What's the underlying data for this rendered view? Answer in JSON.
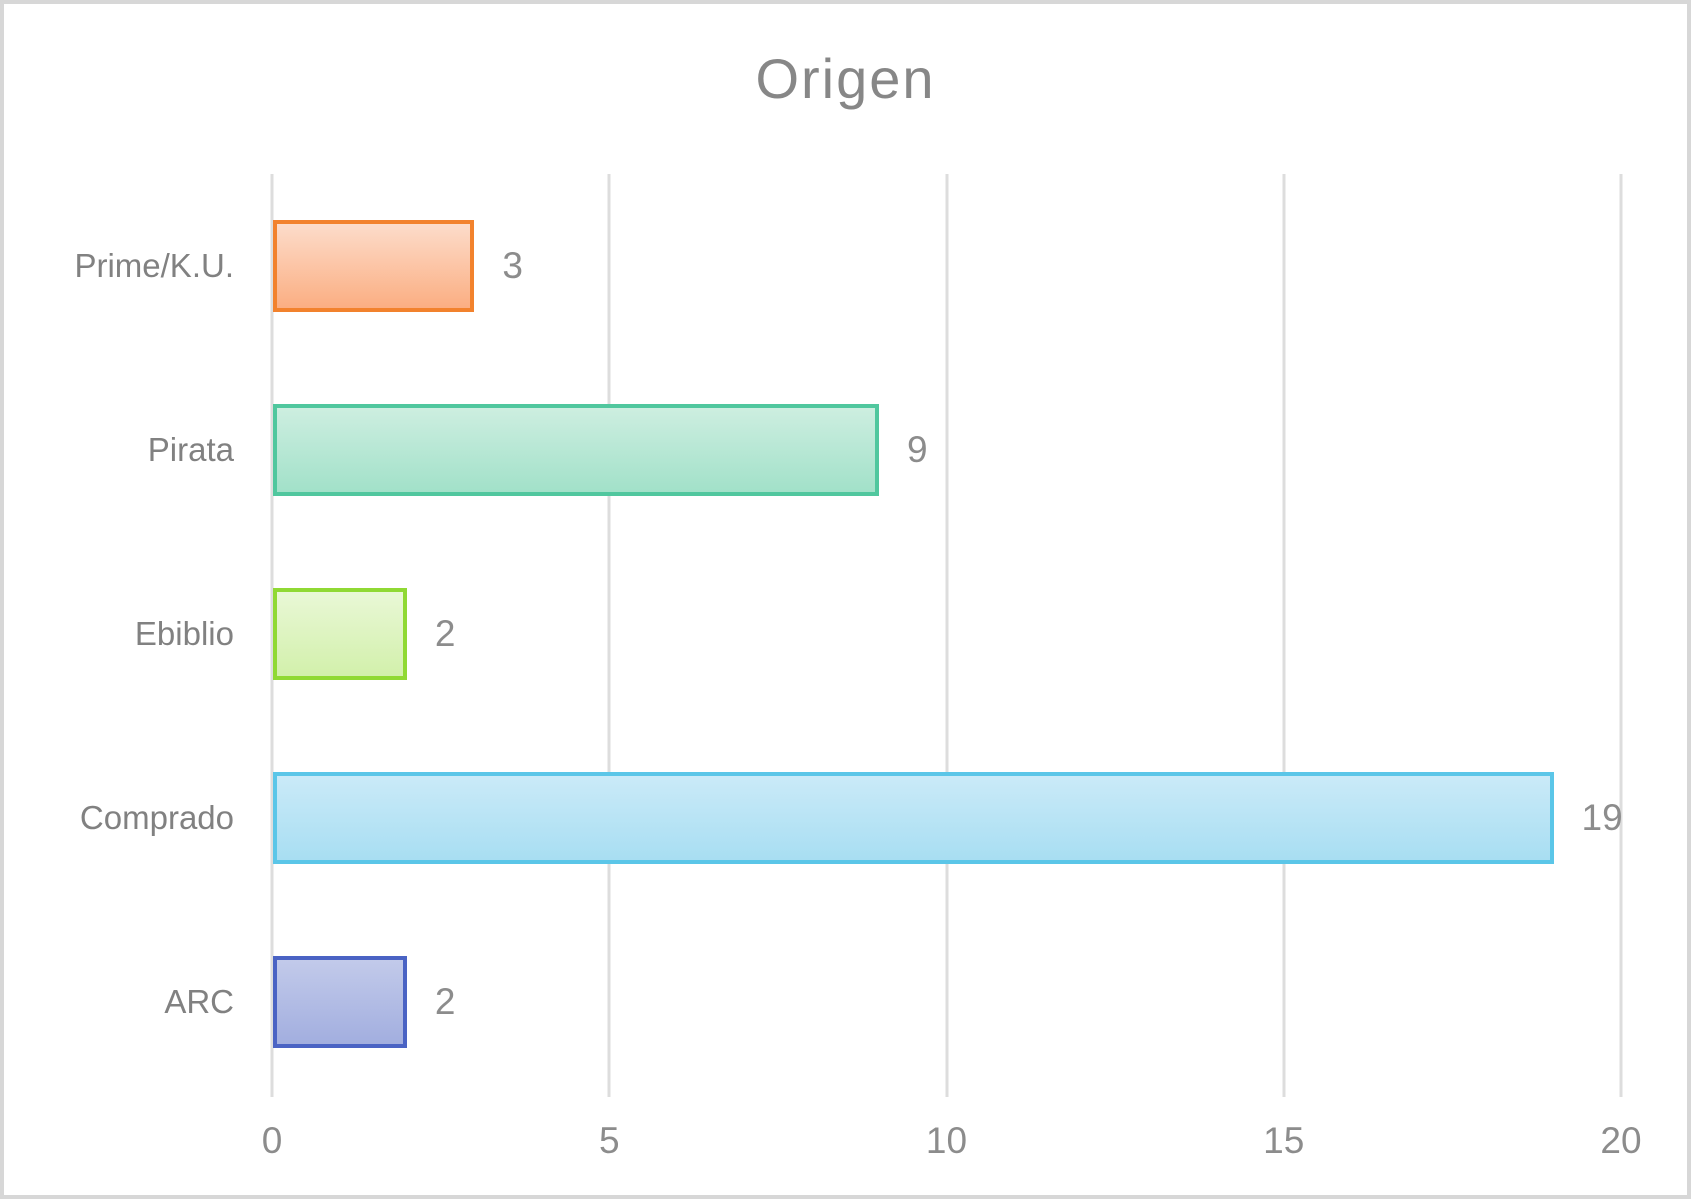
{
  "chart_data": {
    "type": "bar",
    "orientation": "horizontal",
    "title": "Origen",
    "categories": [
      "Prime/K.U.",
      "Pirata",
      "Ebiblio",
      "Comprado",
      "ARC"
    ],
    "values": [
      3,
      9,
      2,
      19,
      2
    ],
    "value_labels": [
      "3",
      "9",
      "2",
      "19",
      "2"
    ],
    "xlim": [
      0,
      20
    ],
    "xticks": [
      0,
      5,
      10,
      15,
      20
    ],
    "grid": "vertical-only",
    "legend": "none",
    "bar_styles": [
      {
        "name": "orange",
        "border": "#f2822d",
        "fill_top": "#fcdcca",
        "fill_bottom": "#fbae82"
      },
      {
        "name": "teal",
        "border": "#50c79e",
        "fill_top": "#cdeee0",
        "fill_bottom": "#a2e1c9"
      },
      {
        "name": "lime",
        "border": "#90d934",
        "fill_top": "#e9f8d6",
        "fill_bottom": "#d2f0ab"
      },
      {
        "name": "blue",
        "border": "#5bc6e8",
        "fill_top": "#caeaf8",
        "fill_bottom": "#a8def2"
      },
      {
        "name": "indigo",
        "border": "#4a63c4",
        "fill_top": "#c2caea",
        "fill_bottom": "#a2aedf"
      }
    ]
  },
  "palette": {
    "title_text": "#878787",
    "category_text": "#818181",
    "value_text": "#8c8c8c",
    "tick_text": "#8c8c8c",
    "gridline": "#dddddd",
    "frame_border": "#d7d7d7",
    "background": "#ffffff"
  }
}
